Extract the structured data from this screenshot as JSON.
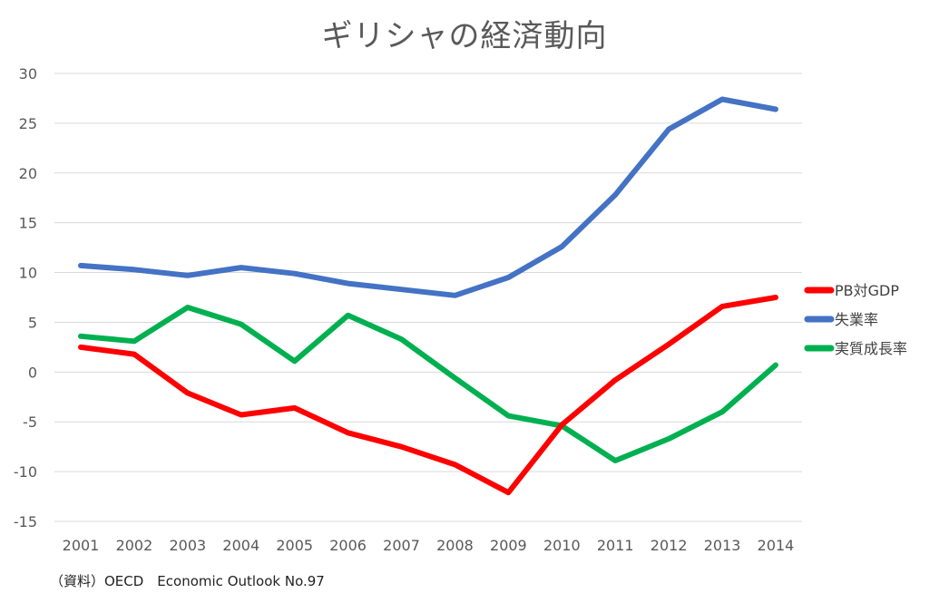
{
  "chart_data": {
    "type": "line",
    "title": "ギリシャの経済動向",
    "source": "（資料）OECD　Economic Outlook No.97",
    "categories": [
      "2001",
      "2002",
      "2003",
      "2004",
      "2005",
      "2006",
      "2007",
      "2008",
      "2009",
      "2010",
      "2011",
      "2012",
      "2013",
      "2014"
    ],
    "ylim": [
      -15,
      30
    ],
    "yticks": [
      30,
      25,
      20,
      15,
      10,
      5,
      0,
      -5,
      -10,
      -15
    ],
    "grid": true,
    "legend_position": "right",
    "series": [
      {
        "name": "PB対GDP",
        "color": "#ff0000",
        "values": [
          2.5,
          1.8,
          -2.1,
          -4.3,
          -3.6,
          -6.1,
          -7.5,
          -9.3,
          -12.1,
          -5.3,
          -0.8,
          2.8,
          6.6,
          7.5
        ]
      },
      {
        "name": "失業率",
        "color": "#4472c4",
        "values": [
          10.7,
          10.3,
          9.7,
          10.5,
          9.9,
          8.9,
          8.3,
          7.7,
          9.5,
          12.6,
          17.8,
          24.4,
          27.4,
          26.4
        ]
      },
      {
        "name": "実質成長率",
        "color": "#00b050",
        "values": [
          3.6,
          3.1,
          6.5,
          4.8,
          1.1,
          5.7,
          3.3,
          -0.6,
          -4.4,
          -5.4,
          -8.9,
          -6.7,
          -4.0,
          0.7
        ]
      }
    ]
  }
}
